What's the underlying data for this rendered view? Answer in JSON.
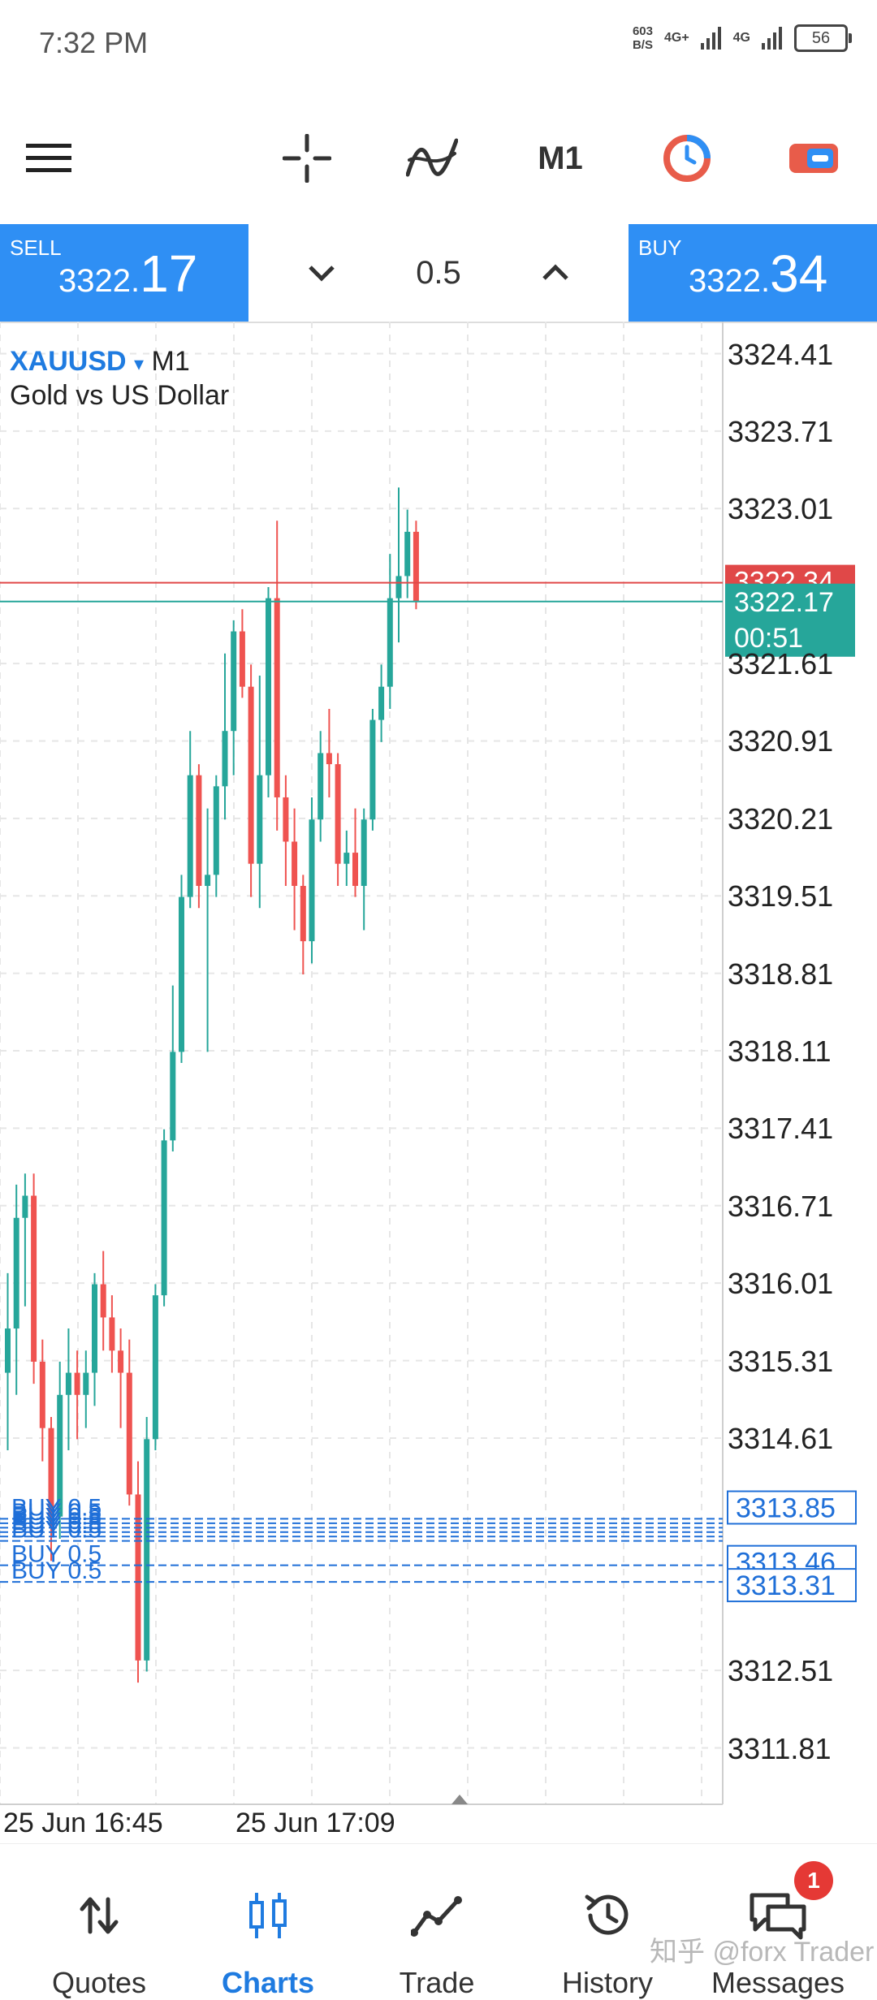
{
  "status_bar": {
    "time": "7:32 PM",
    "net_speed_value": "603",
    "net_speed_unit": "B/S",
    "signal1": "4G+",
    "signal2": "4G",
    "battery": "56"
  },
  "toolbar": {
    "timeframe": "M1",
    "icons": [
      "menu-icon",
      "crosshair-icon",
      "indicators-icon",
      "timer-icon",
      "toggle-icon"
    ]
  },
  "trade_panel": {
    "sell_label": "SELL",
    "sell_price_prefix": "3322.",
    "sell_price_big": "17",
    "buy_label": "BUY",
    "buy_price_prefix": "3322.",
    "buy_price_big": "34",
    "volume": "0.5"
  },
  "chart": {
    "symbol": "XAUUSD",
    "dropdown_glyph": "▾",
    "timeframe": "M1",
    "description": "Gold vs US Dollar",
    "colors": {
      "up": "#26a69a",
      "down": "#ef5350",
      "ask_line": "#e04848",
      "bid_line": "#26a69a",
      "order_line": "#1f6fd8"
    }
  },
  "chart_data": {
    "type": "candlestick",
    "y_ticks": [
      "3324.41",
      "3323.71",
      "3323.01",
      "3321.61",
      "3320.91",
      "3320.21",
      "3319.51",
      "3318.81",
      "3318.11",
      "3317.41",
      "3316.71",
      "3316.01",
      "3315.31",
      "3314.61",
      "3312.51",
      "3311.81"
    ],
    "ylim": [
      3311.3,
      3324.7
    ],
    "x_labels": [
      "25 Jun 16:45",
      "25 Jun 17:09"
    ],
    "bid": 3322.17,
    "ask": 3322.34,
    "bid_label": "3322.17",
    "ask_label": "3322.34",
    "countdown": "00:51",
    "order_lines": [
      {
        "label": "BUY 0.5",
        "price": 3313.88
      },
      {
        "label": "BUY 0.5",
        "price": 3313.84
      },
      {
        "label": "BUY 0.5",
        "price": 3313.8
      },
      {
        "label": "BUY 0.5",
        "price": 3313.76
      },
      {
        "label": "BUY 0.5",
        "price": 3313.72
      },
      {
        "label": "BUY 0.5",
        "price": 3313.68
      },
      {
        "label": "BUY 0.5",
        "price": 3313.46
      },
      {
        "label": "BUY 0.5",
        "price": 3313.31
      }
    ],
    "order_price_tags": [
      "3313.85",
      "3313.46",
      "3313.31"
    ],
    "candles": [
      {
        "o": 3315.2,
        "h": 3316.1,
        "l": 3314.5,
        "c": 3315.6
      },
      {
        "o": 3315.6,
        "h": 3316.9,
        "l": 3315.0,
        "c": 3316.6
      },
      {
        "o": 3316.6,
        "h": 3317.0,
        "l": 3315.8,
        "c": 3316.8
      },
      {
        "o": 3316.8,
        "h": 3317.0,
        "l": 3315.1,
        "c": 3315.3
      },
      {
        "o": 3315.3,
        "h": 3315.5,
        "l": 3314.4,
        "c": 3314.7
      },
      {
        "o": 3314.7,
        "h": 3314.8,
        "l": 3313.5,
        "c": 3313.9
      },
      {
        "o": 3313.9,
        "h": 3315.3,
        "l": 3313.7,
        "c": 3315.0
      },
      {
        "o": 3315.0,
        "h": 3315.6,
        "l": 3314.5,
        "c": 3315.2
      },
      {
        "o": 3315.2,
        "h": 3315.4,
        "l": 3314.6,
        "c": 3315.0
      },
      {
        "o": 3315.0,
        "h": 3315.4,
        "l": 3314.7,
        "c": 3315.2
      },
      {
        "o": 3315.2,
        "h": 3316.1,
        "l": 3314.9,
        "c": 3316.0
      },
      {
        "o": 3316.0,
        "h": 3316.3,
        "l": 3315.4,
        "c": 3315.7
      },
      {
        "o": 3315.7,
        "h": 3315.9,
        "l": 3315.2,
        "c": 3315.4
      },
      {
        "o": 3315.4,
        "h": 3315.6,
        "l": 3314.7,
        "c": 3315.2
      },
      {
        "o": 3315.2,
        "h": 3315.5,
        "l": 3314.0,
        "c": 3314.1
      },
      {
        "o": 3314.1,
        "h": 3314.4,
        "l": 3312.4,
        "c": 3312.6
      },
      {
        "o": 3312.6,
        "h": 3314.8,
        "l": 3312.5,
        "c": 3314.6
      },
      {
        "o": 3314.6,
        "h": 3316.0,
        "l": 3314.5,
        "c": 3315.9
      },
      {
        "o": 3315.9,
        "h": 3317.4,
        "l": 3315.8,
        "c": 3317.3
      },
      {
        "o": 3317.3,
        "h": 3318.7,
        "l": 3317.2,
        "c": 3318.1
      },
      {
        "o": 3318.1,
        "h": 3319.7,
        "l": 3318.0,
        "c": 3319.5
      },
      {
        "o": 3319.5,
        "h": 3321.0,
        "l": 3319.4,
        "c": 3320.6
      },
      {
        "o": 3320.6,
        "h": 3320.7,
        "l": 3319.4,
        "c": 3319.6
      },
      {
        "o": 3319.6,
        "h": 3320.3,
        "l": 3318.1,
        "c": 3319.7
      },
      {
        "o": 3319.7,
        "h": 3320.6,
        "l": 3319.5,
        "c": 3320.5
      },
      {
        "o": 3320.5,
        "h": 3321.7,
        "l": 3320.2,
        "c": 3321.0
      },
      {
        "o": 3321.0,
        "h": 3322.0,
        "l": 3320.6,
        "c": 3321.9
      },
      {
        "o": 3321.9,
        "h": 3322.1,
        "l": 3321.3,
        "c": 3321.4
      },
      {
        "o": 3321.4,
        "h": 3321.6,
        "l": 3319.5,
        "c": 3319.8
      },
      {
        "o": 3319.8,
        "h": 3321.5,
        "l": 3319.4,
        "c": 3320.6
      },
      {
        "o": 3320.6,
        "h": 3322.3,
        "l": 3320.4,
        "c": 3322.2
      },
      {
        "o": 3322.2,
        "h": 3322.9,
        "l": 3320.1,
        "c": 3320.4
      },
      {
        "o": 3320.4,
        "h": 3320.6,
        "l": 3319.6,
        "c": 3320.0
      },
      {
        "o": 3320.0,
        "h": 3320.3,
        "l": 3319.2,
        "c": 3319.6
      },
      {
        "o": 3319.6,
        "h": 3319.7,
        "l": 3318.8,
        "c": 3319.1
      },
      {
        "o": 3319.1,
        "h": 3320.4,
        "l": 3318.9,
        "c": 3320.2
      },
      {
        "o": 3320.2,
        "h": 3321.0,
        "l": 3320.0,
        "c": 3320.8
      },
      {
        "o": 3320.8,
        "h": 3321.2,
        "l": 3320.4,
        "c": 3320.7
      },
      {
        "o": 3320.7,
        "h": 3320.8,
        "l": 3319.6,
        "c": 3319.8
      },
      {
        "o": 3319.8,
        "h": 3320.1,
        "l": 3319.6,
        "c": 3319.9
      },
      {
        "o": 3319.9,
        "h": 3320.3,
        "l": 3319.5,
        "c": 3319.6
      },
      {
        "o": 3319.6,
        "h": 3320.3,
        "l": 3319.2,
        "c": 3320.2
      },
      {
        "o": 3320.2,
        "h": 3321.2,
        "l": 3320.1,
        "c": 3321.1
      },
      {
        "o": 3321.1,
        "h": 3321.6,
        "l": 3320.9,
        "c": 3321.4
      },
      {
        "o": 3321.4,
        "h": 3322.6,
        "l": 3321.2,
        "c": 3322.2
      },
      {
        "o": 3322.2,
        "h": 3323.2,
        "l": 3321.8,
        "c": 3322.4
      },
      {
        "o": 3322.4,
        "h": 3323.0,
        "l": 3322.2,
        "c": 3322.8
      },
      {
        "o": 3322.8,
        "h": 3322.9,
        "l": 3322.1,
        "c": 3322.17
      }
    ]
  },
  "bottom_nav": {
    "items": [
      {
        "label": "Quotes",
        "icon": "quotes-icon"
      },
      {
        "label": "Charts",
        "icon": "charts-icon"
      },
      {
        "label": "Trade",
        "icon": "trade-icon"
      },
      {
        "label": "History",
        "icon": "history-icon"
      },
      {
        "label": "Messages",
        "icon": "messages-icon"
      }
    ],
    "messages_badge": "1",
    "active": "Charts"
  },
  "watermark": "知乎 @forx Trader"
}
